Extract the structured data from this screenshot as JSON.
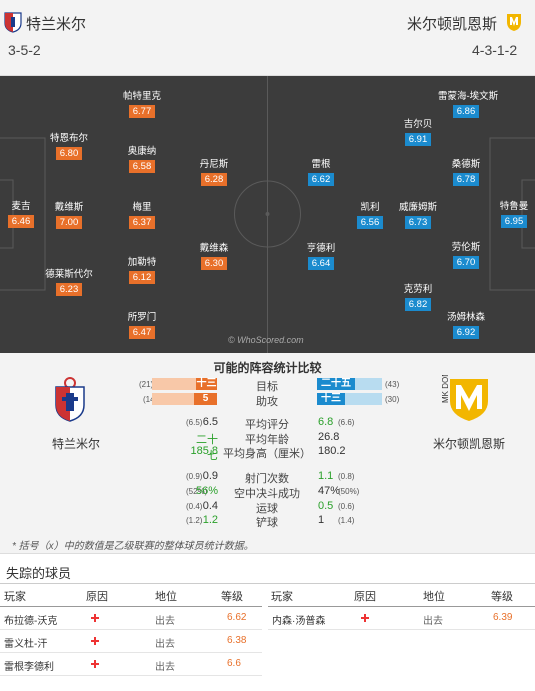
{
  "header": {
    "home_name": "特兰米尔",
    "home_formation": "3-5-2",
    "away_name": "米尔顿凯恩斯",
    "away_formation": "4-3-1-2"
  },
  "pitch": {
    "home_players": [
      {
        "name": "麦吉",
        "rating": "6.46"
      },
      {
        "name": "特恩布尔",
        "rating": "6.80"
      },
      {
        "name": "戴维斯",
        "rating": "7.00"
      },
      {
        "name": "德莱斯代尔",
        "rating": "6.23"
      },
      {
        "name": "帕特里克",
        "rating": "6.77"
      },
      {
        "name": "奥康纳",
        "rating": "6.58"
      },
      {
        "name": "梅里",
        "rating": "6.37"
      },
      {
        "name": "加勒特",
        "rating": "6.12"
      },
      {
        "name": "丹尼斯",
        "rating": "6.28"
      },
      {
        "name": "所罗门",
        "rating": "6.47"
      },
      {
        "name": "戴维森",
        "rating": "6.30"
      }
    ],
    "away_players": [
      {
        "name": "特鲁曼",
        "rating": "6.95"
      },
      {
        "name": "雷蒙海-埃文斯",
        "rating": "6.86"
      },
      {
        "name": "吉尔贝",
        "rating": "6.91"
      },
      {
        "name": "桑德斯",
        "rating": "6.78"
      },
      {
        "name": "威廉姆斯",
        "rating": "6.73"
      },
      {
        "name": "凯利",
        "rating": "6.56"
      },
      {
        "name": "劳伦斯",
        "rating": "6.70"
      },
      {
        "name": "克劳利",
        "rating": "6.82"
      },
      {
        "name": "汤姆林森",
        "rating": "6.92"
      },
      {
        "name": "雷根",
        "rating": "6.62"
      },
      {
        "name": "亨德利",
        "rating": "6.64"
      }
    ],
    "watermark": "© WhoScored.com"
  },
  "compare": {
    "title": "可能的阵容统计比较",
    "home_label": "特兰米尔",
    "away_label": "米尔顿凯恩斯",
    "bars": [
      {
        "label": "目标",
        "home": "十三",
        "home_paren": "(21)",
        "home_fraction": 0.33,
        "away": "二十五",
        "away_paren": "(43)",
        "away_fraction": 0.58
      },
      {
        "label": "助攻",
        "home": "5",
        "home_paren": "(14)",
        "home_fraction": 0.36,
        "away": "十三",
        "away_paren": "(30)",
        "away_fraction": 0.43
      }
    ],
    "stats": [
      {
        "label": "平均评分",
        "home_paren": "(6.5)",
        "home": "6.5",
        "away": "6.8",
        "away_paren": "(6.6)",
        "home_green": false,
        "away_green": true
      },
      {
        "label": "平均年龄",
        "home_paren": "",
        "home": "二十七",
        "away": "26.8",
        "away_paren": "",
        "home_green": true,
        "away_green": false
      },
      {
        "label": "平均身高（厘米）",
        "home_paren": "",
        "home": "185.8",
        "away": "180.2",
        "away_paren": "",
        "home_green": true,
        "away_green": false
      },
      {
        "label": "射门次数",
        "home_paren": "(0.9)",
        "home": "0.9",
        "away": "1.1",
        "away_paren": "(0.8)",
        "home_green": false,
        "away_green": true
      },
      {
        "label": "空中决斗成功",
        "home_paren": "(52%)",
        "home": "56%",
        "away": "47%",
        "away_paren": "(50%)",
        "home_green": true,
        "away_green": false
      },
      {
        "label": "运球",
        "home_paren": "(0.4)",
        "home": "0.4",
        "away": "0.5",
        "away_paren": "(0.6)",
        "home_green": false,
        "away_green": true
      },
      {
        "label": "铲球",
        "home_paren": "(1.2)",
        "home": "1.2",
        "away": "1",
        "away_paren": "(1.4)",
        "home_green": true,
        "away_green": false
      }
    ],
    "footnote": "* 括号（x）中的数值是乙级联赛的整体球员统计数据。"
  },
  "missing": {
    "title": "失踪的球员",
    "headers": {
      "player": "玩家",
      "reason": "原因",
      "status": "地位",
      "grade": "等级"
    },
    "home": [
      {
        "player": "布拉德-沃克",
        "status": "出去",
        "grade": "6.62"
      },
      {
        "player": "雷义杜-汗",
        "status": "出去",
        "grade": "6.38"
      },
      {
        "player": "雷根李德利",
        "status": "出去",
        "grade": "6.6"
      }
    ],
    "away": [
      {
        "player": "内森·汤普森",
        "status": "出去",
        "grade": "6.39"
      }
    ]
  }
}
